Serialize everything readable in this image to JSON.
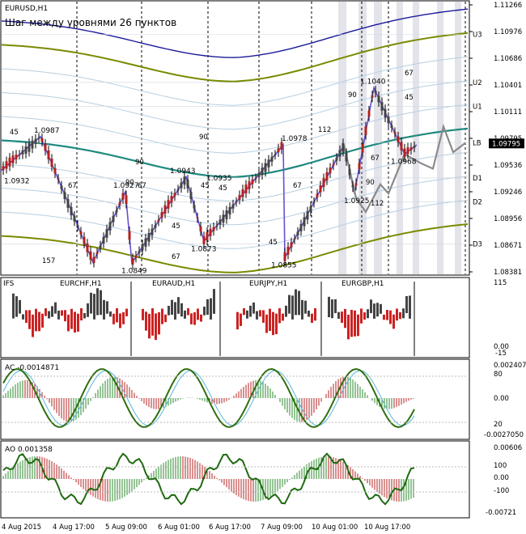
{
  "chart_data": [
    {
      "type": "line",
      "symbol": "EURUSD,H1",
      "title": "Шаг между уровнями 26 пунктов",
      "price_axis": [
        "1.11266",
        "1.10976",
        "1.10686",
        "1.10401",
        "1.10111",
        "1.09795",
        "1.09536",
        "1.09246",
        "1.08956",
        "1.08671",
        "1.08381"
      ],
      "current_price": "1.09795",
      "ylim": [
        1.0838,
        1.1133
      ],
      "levels": [
        {
          "label": "U3",
          "value": 1.1098
        },
        {
          "label": "U2",
          "value": 1.1046
        },
        {
          "label": "U1",
          "value": 1.102
        },
        {
          "label": "LB",
          "value": 1.098
        },
        {
          "label": "D1",
          "value": 1.0942
        },
        {
          "label": "D2",
          "value": 1.0916
        },
        {
          "label": "D3",
          "value": 1.087
        }
      ],
      "price_labels": [
        {
          "text": "1.0932",
          "value": 1.0932
        },
        {
          "text": "1.0987",
          "value": 1.0987
        },
        {
          "text": "1.0927",
          "value": 1.0927
        },
        {
          "text": "1.0943",
          "value": 1.0943
        },
        {
          "text": "1.0935",
          "value": 1.0935
        },
        {
          "text": "1.0873",
          "value": 1.0873
        },
        {
          "text": "1.0849",
          "value": 1.0849
        },
        {
          "text": "1.0978",
          "value": 1.0978
        },
        {
          "text": "1.0855",
          "value": 1.0855
        },
        {
          "text": "1.1040",
          "value": 1.104
        },
        {
          "text": "1.0925",
          "value": 1.0925
        },
        {
          "text": "1.0968",
          "value": 1.0968
        }
      ],
      "pip_labels": [
        "45",
        "67",
        "157",
        "90",
        "67",
        "45",
        "67",
        "45",
        "90",
        "45",
        "67",
        "112",
        "90",
        "45",
        "90",
        "67",
        "45",
        "67",
        "90",
        "112"
      ],
      "zigzag": [
        [
          0,
          1.0949
        ],
        [
          50,
          1.0987
        ],
        [
          115,
          1.085
        ],
        [
          155,
          1.0927
        ],
        [
          163,
          1.0849
        ],
        [
          230,
          1.0943
        ],
        [
          252,
          1.0873
        ],
        [
          350,
          1.0978
        ],
        [
          352,
          1.0855
        ],
        [
          425,
          1.0978
        ],
        [
          438,
          1.0925
        ],
        [
          462,
          1.104
        ],
        [
          500,
          1.0968
        ],
        [
          515,
          1.0978
        ]
      ]
    },
    {
      "type": "bar",
      "title": "IFS",
      "panes": [
        "EURCHF,H1",
        "EURAUD,H1",
        "EURJPY,H1",
        "EURGBP,H1"
      ],
      "axis": [
        "115",
        "0.00",
        "-15"
      ]
    },
    {
      "type": "bar",
      "title": "AC -0.0014871",
      "axis": [
        "0.0024073",
        "0.00",
        "-0.0027050"
      ],
      "levels": [
        "80",
        "20"
      ]
    },
    {
      "type": "bar",
      "title": "AO 0.001358",
      "axis": [
        "0.00606",
        "0.00",
        "-0.00721"
      ],
      "levels": [
        "100",
        "0.00",
        "-100"
      ]
    }
  ],
  "time_axis": [
    "4 Aug 2015",
    "4 Aug 17:00",
    "5 Aug 09:00",
    "6 Aug 01:00",
    "6 Aug 17:00",
    "7 Aug 09:00",
    "10 Aug 01:00",
    "10 Aug 17:00"
  ]
}
